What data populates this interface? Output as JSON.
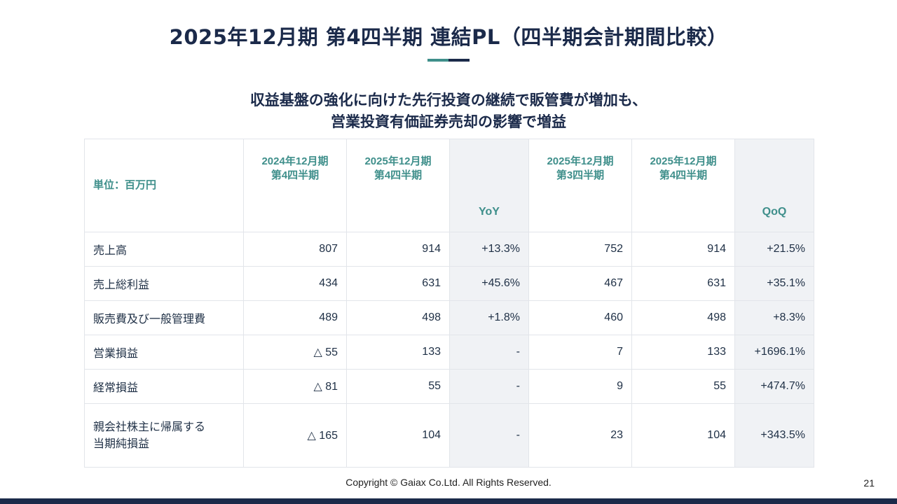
{
  "title": "2025年12月期 第4四半期 連結PL（四半期会計期間比較）",
  "subtitle": {
    "line1": "収益基盤の強化に向けた先行投資の継続で販管費が増加も、",
    "line2": "営業投資有価証券売却の影響で増益"
  },
  "table": {
    "unit": "単位：百万円",
    "headers": [
      {
        "line1": "2024年12月期",
        "line2": "第4四半期"
      },
      {
        "line1": "2025年12月期",
        "line2": "第4四半期"
      },
      {
        "line1": "YoY"
      },
      {
        "line1": "2025年12月期",
        "line2": "第3四半期"
      },
      {
        "line1": "2025年12月期",
        "line2": "第4四半期"
      },
      {
        "line1": "QoQ"
      }
    ],
    "rows": [
      {
        "label": "売上高",
        "cells": [
          "807",
          "914",
          "+13.3%",
          "752",
          "914",
          "+21.5%"
        ]
      },
      {
        "label": "売上総利益",
        "cells": [
          "434",
          "631",
          "+45.6%",
          "467",
          "631",
          "+35.1%"
        ]
      },
      {
        "label": "販売費及び一般管理費",
        "cells": [
          "489",
          "498",
          "+1.8%",
          "460",
          "498",
          "+8.3%"
        ]
      },
      {
        "label": "営業損益",
        "cells": [
          "△ 55",
          "133",
          "-",
          "7",
          "133",
          "+1696.1%"
        ]
      },
      {
        "label": "経常損益",
        "cells": [
          "△ 81",
          "55",
          "-",
          "9",
          "55",
          "+474.7%"
        ]
      },
      {
        "label": "親会社株主に帰属する",
        "label2": "当期純損益",
        "cells": [
          "△ 165",
          "104",
          "-",
          "23",
          "104",
          "+343.5%"
        ]
      }
    ]
  },
  "footer": {
    "copyright": "Copyright © Gaiax Co.Ltd. All Rights Reserved.",
    "page_number": "21"
  },
  "colors": {
    "navy": "#1b2a4a",
    "teal": "#3f8f8b",
    "shade": "#f0f2f5"
  }
}
